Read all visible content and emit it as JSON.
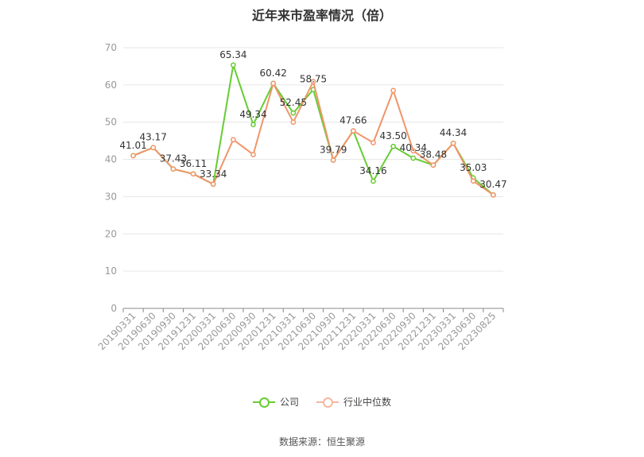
{
  "title": "近年来市盈率情况（倍）",
  "source_text": "数据来源：恒生聚源",
  "colors": {
    "company": "#66cc33",
    "industry": "#f0956a",
    "grid": "#e6e6e6",
    "axis": "#888888",
    "label": "#999999"
  },
  "chart_data": {
    "type": "line",
    "title": "近年来市盈率情况（倍）",
    "xlabel": "",
    "ylabel": "",
    "ylim": [
      0,
      70
    ],
    "yticks": [
      0,
      10,
      20,
      30,
      40,
      50,
      60,
      70
    ],
    "grid": true,
    "legend_position": "bottom",
    "categories": [
      "20190331",
      "20190630",
      "20190930",
      "20191231",
      "20200331",
      "20200630",
      "20200930",
      "20201231",
      "20210331",
      "20210630",
      "20210930",
      "20211231",
      "20220331",
      "20220630",
      "20220930",
      "20221231",
      "20230331",
      "20230630",
      "20230825"
    ],
    "series": [
      {
        "name": "公司",
        "values": [
          41.01,
          43.17,
          37.43,
          36.11,
          33.34,
          65.34,
          49.34,
          60.42,
          52.45,
          58.75,
          39.79,
          47.66,
          34.16,
          43.5,
          40.34,
          38.48,
          44.34,
          35.03,
          30.47
        ],
        "labels": [
          "41.01",
          "43.17",
          "37.43",
          "36.11",
          "33.34",
          "65.34",
          "49.34",
          "60.42",
          "52.45",
          "58.75",
          "39.79",
          "47.66",
          "34.16",
          "43.50",
          "40.34",
          "38.48",
          "44.34",
          "35.03",
          "30.47"
        ]
      },
      {
        "name": "行业中位数",
        "values": [
          41.01,
          43.17,
          37.43,
          36.11,
          33.34,
          45.3,
          41.3,
          60.42,
          50.0,
          60.9,
          39.79,
          47.66,
          44.5,
          58.5,
          42.3,
          38.48,
          44.34,
          34.2,
          30.47
        ]
      }
    ]
  }
}
